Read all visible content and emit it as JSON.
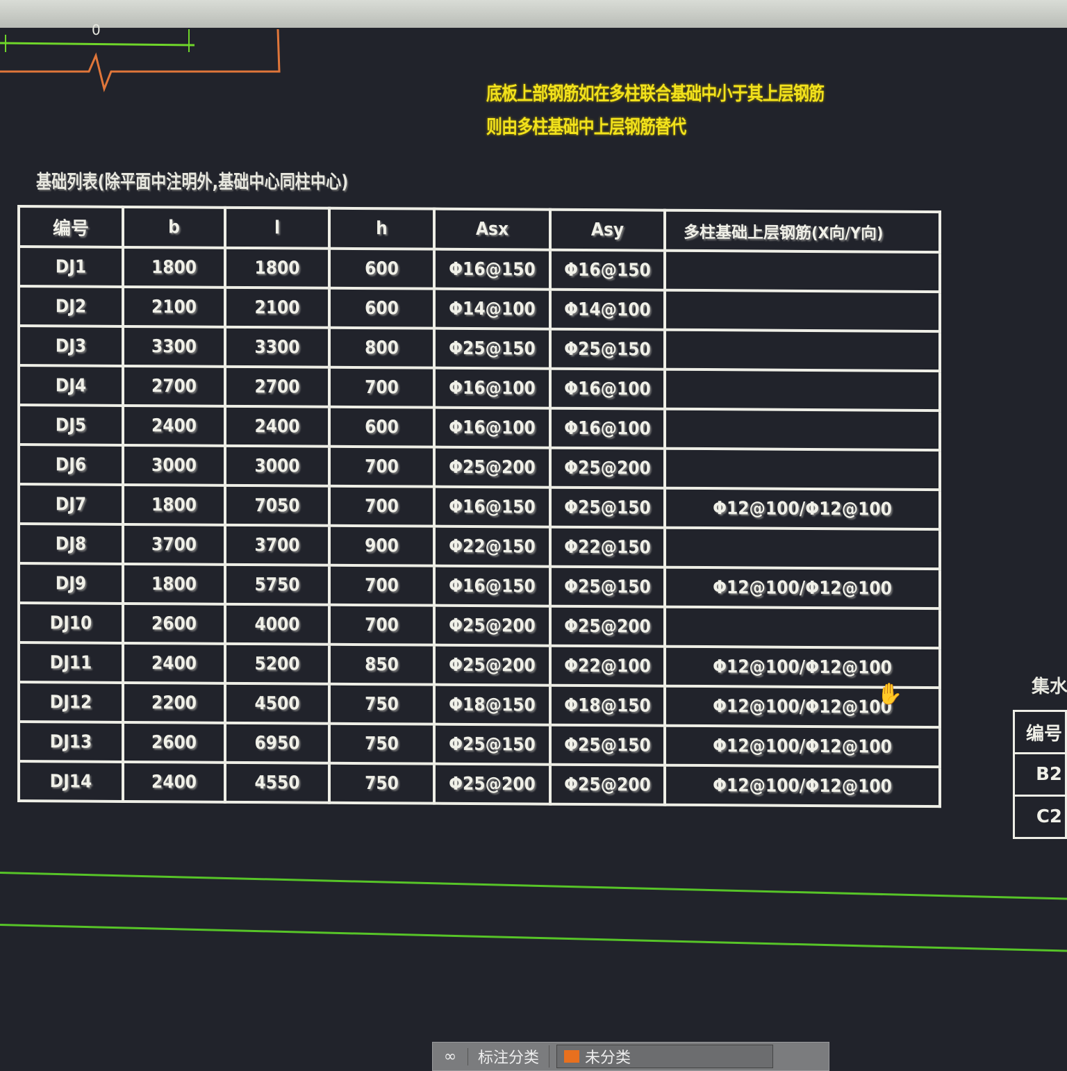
{
  "drawing": {
    "dimension_text": "0"
  },
  "note": {
    "lines": [
      "底板上部钢筋如在多柱联合基础中小于其上层钢筋",
      "则由多柱基础中上层钢筋替代"
    ],
    "color": "#f2e21c"
  },
  "table_title": "基础列表(除平面中注明外,基础中心同柱中心)",
  "table": {
    "headers": [
      "编号",
      "b",
      "l",
      "h",
      "Asx",
      "Asy",
      "多柱基础上层钢筋(X向/Y向)"
    ],
    "rows": [
      [
        "DJ1",
        "1800",
        "1800",
        "600",
        "Φ16@150",
        "Φ16@150",
        ""
      ],
      [
        "DJ2",
        "2100",
        "2100",
        "600",
        "Φ14@100",
        "Φ14@100",
        ""
      ],
      [
        "DJ3",
        "3300",
        "3300",
        "800",
        "Φ25@150",
        "Φ25@150",
        ""
      ],
      [
        "DJ4",
        "2700",
        "2700",
        "700",
        "Φ16@100",
        "Φ16@100",
        ""
      ],
      [
        "DJ5",
        "2400",
        "2400",
        "600",
        "Φ16@100",
        "Φ16@100",
        ""
      ],
      [
        "DJ6",
        "3000",
        "3000",
        "700",
        "Φ25@200",
        "Φ25@200",
        ""
      ],
      [
        "DJ7",
        "1800",
        "7050",
        "700",
        "Φ16@150",
        "Φ25@150",
        "Φ12@100/Φ12@100"
      ],
      [
        "DJ8",
        "3700",
        "3700",
        "900",
        "Φ22@150",
        "Φ22@150",
        ""
      ],
      [
        "DJ9",
        "1800",
        "5750",
        "700",
        "Φ16@150",
        "Φ25@150",
        "Φ12@100/Φ12@100"
      ],
      [
        "DJ10",
        "2600",
        "4000",
        "700",
        "Φ25@200",
        "Φ25@200",
        ""
      ],
      [
        "DJ11",
        "2400",
        "5200",
        "850",
        "Φ25@200",
        "Φ22@100",
        "Φ12@100/Φ12@100"
      ],
      [
        "DJ12",
        "2200",
        "4500",
        "750",
        "Φ18@150",
        "Φ18@150",
        "Φ12@100/Φ12@100"
      ],
      [
        "DJ13",
        "2600",
        "6950",
        "750",
        "Φ25@150",
        "Φ25@150",
        "Φ12@100/Φ12@100"
      ],
      [
        "DJ14",
        "2400",
        "4550",
        "750",
        "Φ25@200",
        "Φ25@200",
        "Φ12@100/Φ12@100"
      ]
    ]
  },
  "side_table": {
    "title": "集水井",
    "header": "编号",
    "rows": [
      "B2",
      "C2"
    ]
  },
  "statusbar": {
    "icon": "link-icon",
    "label": "标注分类",
    "selected": "未分类",
    "swatch_color": "#e8701e"
  },
  "cursor": "hand-cursor-icon"
}
